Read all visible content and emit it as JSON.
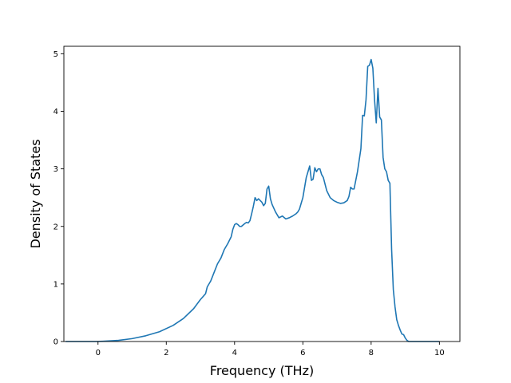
{
  "chart_data": {
    "type": "line",
    "title": "",
    "xlabel": "Frequency (THz)",
    "ylabel": "Density of States",
    "xlim": [
      -1.0,
      10.6
    ],
    "ylim": [
      0,
      5.13
    ],
    "xticks": [
      0,
      2,
      4,
      6,
      8,
      10
    ],
    "yticks": [
      0,
      1,
      2,
      3,
      4,
      5
    ],
    "grid": false,
    "legend": "none",
    "series": [
      {
        "color": "#1f77b4",
        "x": [
          -0.95,
          -0.5,
          0.0,
          0.3,
          0.6,
          1.0,
          1.4,
          1.8,
          2.2,
          2.5,
          2.8,
          3.0,
          3.15,
          3.2,
          3.3,
          3.4,
          3.5,
          3.6,
          3.7,
          3.8,
          3.9,
          3.95,
          4.0,
          4.05,
          4.1,
          4.15,
          4.2,
          4.3,
          4.35,
          4.4,
          4.45,
          4.5,
          4.55,
          4.6,
          4.65,
          4.7,
          4.8,
          4.85,
          4.9,
          4.95,
          5.0,
          5.05,
          5.1,
          5.2,
          5.3,
          5.4,
          5.5,
          5.6,
          5.7,
          5.8,
          5.85,
          5.9,
          6.0,
          6.1,
          6.15,
          6.2,
          6.25,
          6.3,
          6.35,
          6.4,
          6.45,
          6.5,
          6.55,
          6.6,
          6.7,
          6.8,
          6.9,
          7.0,
          7.1,
          7.2,
          7.3,
          7.35,
          7.4,
          7.45,
          7.5,
          7.6,
          7.7,
          7.75,
          7.8,
          7.85,
          7.9,
          7.95,
          8.0,
          8.05,
          8.1,
          8.15,
          8.2,
          8.25,
          8.3,
          8.35,
          8.4,
          8.45,
          8.5,
          8.55,
          8.6,
          8.65,
          8.7,
          8.75,
          8.8,
          8.85,
          8.9,
          8.95,
          9.0,
          9.05,
          9.1,
          9.2,
          9.5,
          10.0
        ],
        "y": [
          0.0,
          0.0,
          0.0,
          0.01,
          0.02,
          0.05,
          0.1,
          0.17,
          0.28,
          0.4,
          0.57,
          0.73,
          0.83,
          0.95,
          1.05,
          1.2,
          1.35,
          1.45,
          1.6,
          1.7,
          1.82,
          1.95,
          2.03,
          2.05,
          2.03,
          2.0,
          2.0,
          2.05,
          2.07,
          2.06,
          2.1,
          2.22,
          2.35,
          2.5,
          2.45,
          2.48,
          2.42,
          2.36,
          2.4,
          2.65,
          2.7,
          2.48,
          2.38,
          2.25,
          2.15,
          2.18,
          2.13,
          2.15,
          2.18,
          2.22,
          2.25,
          2.3,
          2.5,
          2.85,
          2.95,
          3.05,
          2.8,
          2.82,
          3.02,
          2.95,
          3.0,
          3.0,
          2.9,
          2.85,
          2.62,
          2.5,
          2.45,
          2.42,
          2.4,
          2.41,
          2.45,
          2.52,
          2.68,
          2.65,
          2.65,
          2.95,
          3.35,
          3.93,
          3.92,
          4.2,
          4.78,
          4.8,
          4.9,
          4.75,
          4.2,
          3.8,
          4.4,
          3.9,
          3.85,
          3.2,
          3.0,
          2.95,
          2.8,
          2.75,
          1.6,
          0.9,
          0.6,
          0.38,
          0.28,
          0.2,
          0.13,
          0.12,
          0.06,
          0.02,
          0.0,
          0.0,
          0.0,
          0.0
        ]
      }
    ]
  }
}
